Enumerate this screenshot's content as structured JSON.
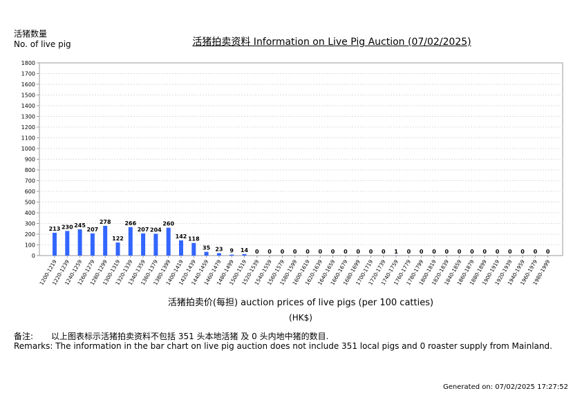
{
  "header": {
    "y_axis_label_cn": "活猪数量",
    "y_axis_label_en": "No. of live pig",
    "title": "活猪拍卖资料 Information on Live Pig Auction (07/02/2025)"
  },
  "footer": {
    "x_axis_title": "活猪拍卖价(每担) auction prices of live pigs (per 100 catties)",
    "unit": "(HK$)",
    "remarks_cn_label": "备注:",
    "remarks_cn_text": "以上图表标示活猪拍卖资料不包括 351 头本地活猪 及 0 头内地中猪的数目.",
    "remarks_en": "Remarks: The information in the bar chart on live pig auction does not include 351 local pigs and 0 roaster supply from Mainland.",
    "generated": "Generated on: 07/02/2025 17:27:52"
  },
  "colors": {
    "bar": "#3366ff",
    "grid": "#dddddd",
    "axis": "#999999"
  },
  "chart_data": {
    "type": "bar",
    "categories": [
      "1200-1219",
      "1220-1239",
      "1240-1259",
      "1260-1279",
      "1280-1299",
      "1300-1319",
      "1320-1339",
      "1340-1359",
      "1360-1379",
      "1380-1399",
      "1400-1419",
      "1420-1439",
      "1440-1459",
      "1460-1479",
      "1480-1499",
      "1500-1519",
      "1520-1539",
      "1540-1559",
      "1560-1579",
      "1580-1599",
      "1600-1619",
      "1620-1639",
      "1640-1659",
      "1660-1679",
      "1680-1699",
      "1700-1719",
      "1720-1739",
      "1740-1759",
      "1760-1779",
      "1780-1799",
      "1800-1819",
      "1820-1839",
      "1840-1859",
      "1860-1879",
      "1880-1899",
      "1900-1919",
      "1920-1939",
      "1940-1959",
      "1960-1979",
      "1980-1999"
    ],
    "values": [
      213,
      230,
      245,
      207,
      278,
      122,
      266,
      207,
      204,
      260,
      142,
      118,
      35,
      23,
      9,
      14,
      0,
      0,
      0,
      0,
      0,
      0,
      0,
      0,
      0,
      0,
      0,
      1,
      0,
      0,
      0,
      0,
      0,
      0,
      0,
      0,
      0,
      0,
      0,
      0
    ],
    "yticks": [
      0,
      100,
      200,
      300,
      400,
      500,
      600,
      700,
      800,
      900,
      1000,
      1100,
      1200,
      1300,
      1400,
      1500,
      1600,
      1700,
      1800
    ],
    "ylim": [
      0,
      1800
    ],
    "grid": true
  }
}
